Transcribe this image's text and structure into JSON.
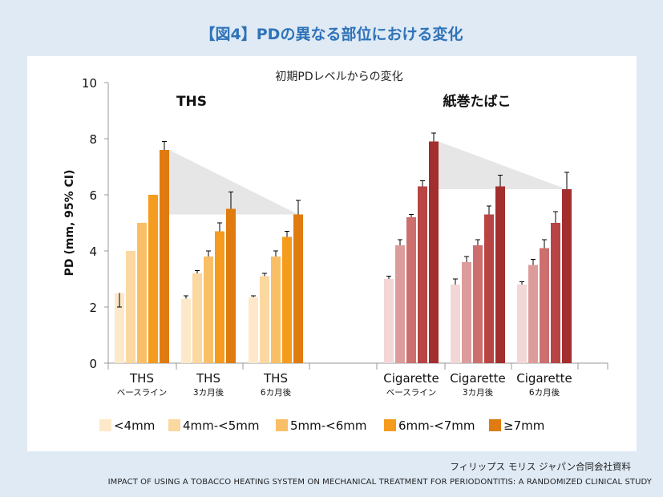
{
  "header": {
    "title": "【図4】PDの異なる部位における変化"
  },
  "chart_data": {
    "type": "bar",
    "title": "初期PDレベルからの変化",
    "ylabel": "PD (mm, 95% CI)",
    "ylim": [
      0,
      10
    ],
    "yticks": [
      0,
      2,
      4,
      6,
      8,
      10
    ],
    "grid": false,
    "legend_position": "bottom",
    "colors": {
      "THS": [
        "#fde9c9",
        "#fbd8a0",
        "#f9bf66",
        "#f59b1e",
        "#e07b0f"
      ],
      "Cigarette": [
        "#f3d6d6",
        "#dd9c9c",
        "#cd6f6f",
        "#b84444",
        "#a22e2e"
      ],
      "whisker": "#000000",
      "shade": "#e6e6e6"
    },
    "legend": [
      {
        "name": "<4mm",
        "color": "#fde9c9"
      },
      {
        "name": "4mm-<5mm",
        "color": "#fbd8a0"
      },
      {
        "name": "5mm-<6mm",
        "color": "#f9bf66"
      },
      {
        "name": "6mm-<7mm",
        "color": "#f59b1e"
      },
      {
        "name": "≥7mm",
        "color": "#e07b0f"
      }
    ],
    "groups": [
      {
        "label": "THS",
        "categories": [
          {
            "label": "THS",
            "sublabel": "ベースライン",
            "values": [
              2.5,
              4.0,
              5.0,
              6.0,
              7.6
            ],
            "upper": [
              null,
              null,
              null,
              null,
              7.9
            ],
            "lower": [
              2.0,
              null,
              null,
              null,
              null
            ]
          },
          {
            "label": "THS",
            "sublabel": "3カ月後",
            "values": [
              2.3,
              3.2,
              3.8,
              4.7,
              5.5
            ],
            "upper": [
              2.4,
              3.3,
              4.0,
              5.0,
              6.1
            ],
            "lower": [
              null,
              null,
              null,
              null,
              null
            ]
          },
          {
            "label": "THS",
            "sublabel": "6カ月後",
            "values": [
              2.35,
              3.1,
              3.8,
              4.5,
              5.3
            ],
            "upper": [
              2.4,
              3.2,
              4.0,
              4.7,
              5.8
            ],
            "lower": [
              null,
              null,
              null,
              null,
              null
            ]
          }
        ],
        "shade": {
          "from": 7.6,
          "to": 5.3
        }
      },
      {
        "label": "紙巻たばこ",
        "categories": [
          {
            "label": "Cigarette",
            "sublabel": "ベースライン",
            "values": [
              3.0,
              4.2,
              5.2,
              6.3,
              7.9
            ],
            "upper": [
              3.1,
              4.4,
              5.3,
              6.5,
              8.2
            ],
            "lower": [
              null,
              null,
              null,
              null,
              null
            ]
          },
          {
            "label": "Cigarette",
            "sublabel": "3カ月後",
            "values": [
              2.8,
              3.6,
              4.2,
              5.3,
              6.3
            ],
            "upper": [
              3.0,
              3.8,
              4.4,
              5.6,
              6.7
            ],
            "lower": [
              null,
              null,
              null,
              null,
              null
            ]
          },
          {
            "label": "Cigarette",
            "sublabel": "6カ月後",
            "values": [
              2.8,
              3.5,
              4.1,
              5.0,
              6.2
            ],
            "upper": [
              2.9,
              3.7,
              4.4,
              5.4,
              6.8
            ],
            "lower": [
              null,
              null,
              null,
              null,
              null
            ]
          }
        ],
        "shade": {
          "from": 7.9,
          "to": 6.2
        }
      }
    ]
  },
  "footer": {
    "source": "フィリップス モリス ジャパン合同会社資料",
    "reference": "IMPACT OF USING A TOBACCO HEATING SYSTEM ON MECHANICAL TREATMENT FOR PERIODONTITIS: A RANDOMIZED CLINICAL STUDY"
  }
}
